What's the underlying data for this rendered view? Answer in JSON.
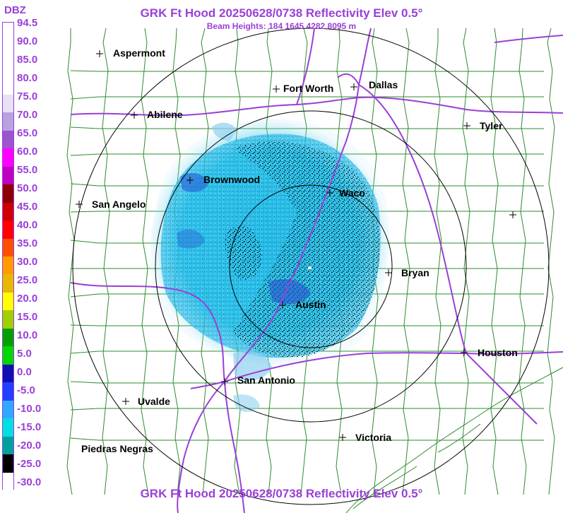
{
  "header": {
    "title": "GRK Ft Hood 20250628/0738 Reflectivity Elev 0.5°",
    "subtitle": "Beam Heights: 184 1645 4282 8095 m"
  },
  "footer": {
    "title": "GRK Ft Hood 20250628/0738 Reflectivity Elev 0.5°"
  },
  "legend": {
    "unit": "DBZ",
    "labels": [
      "94.5",
      "90.0",
      "85.0",
      "80.0",
      "75.0",
      "70.0",
      "65.0",
      "60.0",
      "55.0",
      "50.0",
      "45.0",
      "40.0",
      "35.0",
      "30.0",
      "25.0",
      "20.0",
      "15.0",
      "10.0",
      "5.0",
      "0.0",
      "-5.0",
      "-10.0",
      "-15.0",
      "-20.0",
      "-25.0",
      "-30.0"
    ],
    "colors": [
      "#ffffff",
      "#ffffff",
      "#ffffff",
      "#ffffff",
      "#e8e0f4",
      "#b7a3e0",
      "#9a55cf",
      "#ff00ff",
      "#c000c0",
      "#8b0000",
      "#cc0000",
      "#ff0000",
      "#ff5000",
      "#ff9a00",
      "#e8b800",
      "#ffff00",
      "#a0d000",
      "#00a000",
      "#00d800",
      "#1010b0",
      "#2040ff",
      "#30a8ff",
      "#00e0e0",
      "#00a0a0",
      "#000000",
      "#ffffff"
    ]
  },
  "map": {
    "radar": "GRK Ft Hood",
    "cities": [
      {
        "name": "Aspermont",
        "label_side": "right"
      },
      {
        "name": "Fort Worth",
        "label_side": "right"
      },
      {
        "name": "Dallas",
        "label_side": "right"
      },
      {
        "name": "Abilene",
        "label_side": "right"
      },
      {
        "name": "Tyler",
        "label_side": "right"
      },
      {
        "name": "Brownwood",
        "label_side": "right"
      },
      {
        "name": "Waco",
        "label_side": "right"
      },
      {
        "name": "San Angelo",
        "label_side": "right"
      },
      {
        "name": "Bryan",
        "label_side": "right"
      },
      {
        "name": "Austin",
        "label_side": "right"
      },
      {
        "name": "Houston",
        "label_side": "right"
      },
      {
        "name": "San Antonio",
        "label_side": "right"
      },
      {
        "name": "Uvalde",
        "label_side": "right"
      },
      {
        "name": "Victoria",
        "label_side": "right"
      },
      {
        "name": "Piedras Negras",
        "label_side": "none"
      }
    ],
    "unlabeled_markers": 1,
    "colors": {
      "county_lines": "#2e8b2e",
      "highways": "#9a3fd8",
      "range_rings": "#000000",
      "title": "#9a3fd8"
    }
  }
}
